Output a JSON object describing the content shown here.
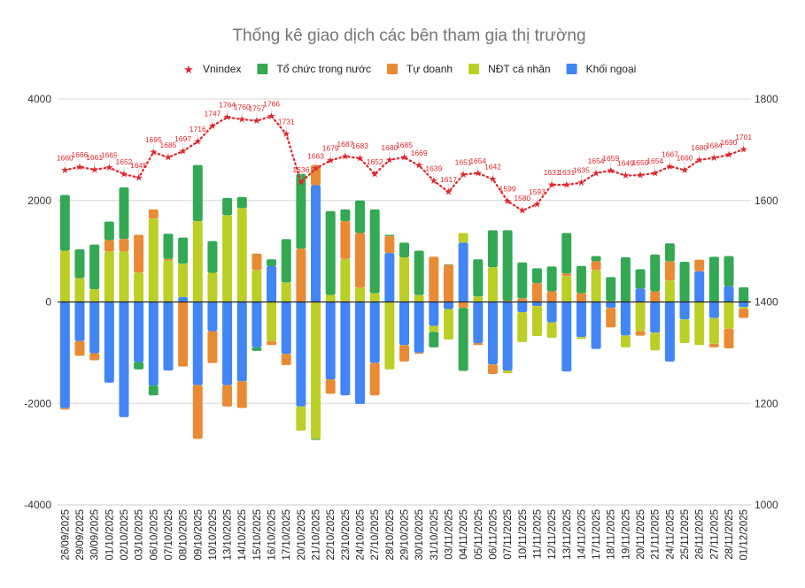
{
  "chart_data": {
    "type": "bar",
    "stacked": true,
    "title": "Thống kê giao dịch các bên tham gia thị trường",
    "legend_position": "top",
    "grid": true,
    "categories": [
      "26/09/2025",
      "29/09/2025",
      "30/09/2025",
      "01/10/2025",
      "02/10/2025",
      "03/10/2025",
      "06/10/2025",
      "07/10/2025",
      "08/10/2025",
      "09/10/2025",
      "10/10/2025",
      "13/10/2025",
      "14/10/2025",
      "15/10/2025",
      "16/10/2025",
      "17/10/2025",
      "20/10/2025",
      "21/10/2025",
      "22/10/2025",
      "23/10/2025",
      "24/10/2025",
      "27/10/2025",
      "28/10/2025",
      "29/10/2025",
      "30/10/2025",
      "31/10/2025",
      "03/11/2025",
      "04/11/2025",
      "05/11/2025",
      "06/11/2025",
      "07/11/2025",
      "10/11/2025",
      "11/11/2025",
      "12/11/2025",
      "13/11/2025",
      "14/11/2025",
      "17/11/2025",
      "18/11/2025",
      "19/11/2025",
      "20/11/2025",
      "21/11/2025",
      "24/11/2025",
      "25/11/2025",
      "26/11/2025",
      "27/11/2025",
      "28/11/2025",
      "01/12/2025"
    ],
    "left_axis": {
      "ylim": [
        -4000,
        4000
      ],
      "ticks": [
        "4000",
        "2000",
        "0",
        "-2000",
        "-4000"
      ]
    },
    "right_axis": {
      "ylim": [
        1000,
        1800
      ],
      "ticks": [
        "1800",
        "1600",
        "1400",
        "1200",
        "1000"
      ]
    },
    "series": [
      {
        "name": "Tổ chức trong nước",
        "color": "#34a853",
        "values": [
          1100,
          570,
          880,
          365,
          1015,
          -145,
          -190,
          495,
          515,
          1105,
          625,
          340,
          220,
          -70,
          135,
          855,
          1475,
          -20,
          1650,
          230,
          640,
          1650,
          25,
          290,
          870,
          -305,
          10,
          -1245,
          730,
          730,
          1390,
          705,
          295,
          490,
          800,
          535,
          105,
          470,
          880,
          380,
          725,
          355,
          790,
          0,
          890,
          595,
          290
        ]
      },
      {
        "name": "Tự doanh",
        "color": "#e98b35",
        "values": [
          -30,
          -290,
          -140,
          225,
          250,
          745,
          180,
          35,
          -1275,
          -1060,
          -630,
          -420,
          -525,
          325,
          -80,
          -220,
          1050,
          400,
          -285,
          745,
          1080,
          -640,
          335,
          -325,
          -20,
          890,
          730,
          -115,
          -40,
          -190,
          25,
          75,
          370,
          210,
          50,
          175,
          170,
          -385,
          0,
          -90,
          210,
          375,
          0,
          230,
          -70,
          -385,
          -185
        ]
      },
      {
        "name": "NĐT cá nhân",
        "color": "#bccf27",
        "values": [
          1010,
          470,
          250,
          995,
          995,
          580,
          1645,
          815,
          660,
          1595,
          575,
          1710,
          1850,
          630,
          -770,
          385,
          -475,
          -2700,
          140,
          850,
          280,
          175,
          -1330,
          880,
          140,
          -120,
          -600,
          190,
          110,
          685,
          -55,
          -590,
          -590,
          -305,
          510,
          -40,
          630,
          20,
          -235,
          -575,
          -350,
          425,
          -465,
          -850,
          -510,
          -530,
          -30
        ]
      },
      {
        "name": "Khối ngoại",
        "color": "#4285f4",
        "values": [
          -2090,
          -770,
          -1010,
          -1590,
          -2270,
          -1185,
          -1650,
          -1350,
          95,
          -1640,
          -575,
          -1640,
          -1565,
          -895,
          705,
          -1025,
          -2060,
          2300,
          -1525,
          -1840,
          -2010,
          -1200,
          965,
          -850,
          -1000,
          -470,
          -140,
          1170,
          -810,
          -1230,
          -1350,
          -200,
          -80,
          -400,
          -1370,
          -690,
          -925,
          -115,
          -660,
          265,
          -605,
          -1175,
          -345,
          605,
          -315,
          310,
          -100
        ]
      }
    ],
    "line_series": {
      "name": "Vnindex",
      "color": "#e0262c",
      "axis": "right",
      "values": [
        1660,
        1666,
        1661,
        1665,
        1652,
        1645,
        1695,
        1685,
        1697,
        1716,
        1747,
        1764,
        1760,
        1757,
        1766,
        1731,
        1636,
        1663,
        1679,
        1687,
        1683,
        1652,
        1680,
        1685,
        1669,
        1639,
        1617,
        1651,
        1654,
        1642,
        1599,
        1580,
        1593,
        1631,
        1631,
        1635,
        1654,
        1659,
        1649,
        1650,
        1654,
        1667,
        1660,
        1680,
        1684,
        1690,
        1701
      ]
    }
  }
}
